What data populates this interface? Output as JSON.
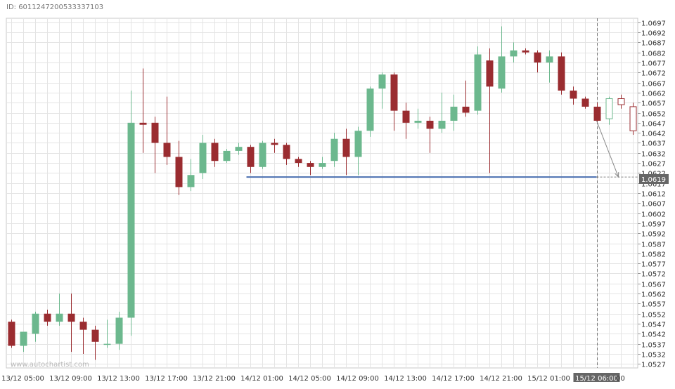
{
  "header": {
    "id_text": "ID: 6011247200533337103"
  },
  "watermark": "www.autochartist.com",
  "colors": {
    "up": "#6cb88e",
    "down": "#9a2c30",
    "grid": "#e4e4e4",
    "support": "#4a6fb0",
    "axis_text": "#333333"
  },
  "chart_data": {
    "type": "candlestick",
    "ylim": [
      1.0525,
      1.0699
    ],
    "y_tick_start": 1.0527,
    "y_tick_step": 0.0005,
    "y_tick_count": 35,
    "x_labels": [
      {
        "index": 1,
        "text": "13/12 05:00"
      },
      {
        "index": 5,
        "text": "13/12 09:00"
      },
      {
        "index": 9,
        "text": "13/12 13:00"
      },
      {
        "index": 13,
        "text": "13/12 17:00"
      },
      {
        "index": 17,
        "text": "13/12 21:00"
      },
      {
        "index": 21,
        "text": "14/12 01:00"
      },
      {
        "index": 25,
        "text": "14/12 05:00"
      },
      {
        "index": 29,
        "text": "14/12 09:00"
      },
      {
        "index": 33,
        "text": "14/12 13:00"
      },
      {
        "index": 37,
        "text": "14/12 17:00"
      },
      {
        "index": 41,
        "text": "14/12 21:00"
      },
      {
        "index": 45,
        "text": "15/12 01:00"
      },
      {
        "index": 49,
        "text": "15/12 06:00",
        "highlight": true
      },
      {
        "index": 51,
        "text": "00"
      }
    ],
    "candles": [
      {
        "o": 1.0548,
        "h": 1.0549,
        "l": 1.0535,
        "c": 1.0536
      },
      {
        "o": 1.0536,
        "h": 1.0543,
        "l": 1.0533,
        "c": 1.0543
      },
      {
        "o": 1.0542,
        "h": 1.0553,
        "l": 1.0538,
        "c": 1.0552
      },
      {
        "o": 1.0552,
        "h": 1.0554,
        "l": 1.0546,
        "c": 1.0548
      },
      {
        "o": 1.0548,
        "h": 1.0562,
        "l": 1.0546,
        "c": 1.0552
      },
      {
        "o": 1.0552,
        "h": 1.0562,
        "l": 1.0533,
        "c": 1.0548
      },
      {
        "o": 1.0548,
        "h": 1.055,
        "l": 1.0532,
        "c": 1.0544
      },
      {
        "o": 1.0544,
        "h": 1.0546,
        "l": 1.0529,
        "c": 1.0538
      },
      {
        "o": 1.0537,
        "h": 1.0549,
        "l": 1.0535,
        "c": 1.0537
      },
      {
        "o": 1.0537,
        "h": 1.0553,
        "l": 1.0534,
        "c": 1.055
      },
      {
        "o": 1.055,
        "h": 1.0663,
        "l": 1.0541,
        "c": 1.0647
      },
      {
        "o": 1.0647,
        "h": 1.0674,
        "l": 1.0632,
        "c": 1.0646
      },
      {
        "o": 1.0647,
        "h": 1.065,
        "l": 1.0622,
        "c": 1.0637
      },
      {
        "o": 1.0637,
        "h": 1.066,
        "l": 1.0626,
        "c": 1.063
      },
      {
        "o": 1.063,
        "h": 1.0638,
        "l": 1.0611,
        "c": 1.0615
      },
      {
        "o": 1.0615,
        "h": 1.0629,
        "l": 1.0613,
        "c": 1.0621
      },
      {
        "o": 1.0622,
        "h": 1.0641,
        "l": 1.0619,
        "c": 1.0637
      },
      {
        "o": 1.0637,
        "h": 1.0639,
        "l": 1.0625,
        "c": 1.0628
      },
      {
        "o": 1.0628,
        "h": 1.0634,
        "l": 1.0627,
        "c": 1.0633
      },
      {
        "o": 1.0633,
        "h": 1.0637,
        "l": 1.0631,
        "c": 1.0635
      },
      {
        "o": 1.0635,
        "h": 1.0636,
        "l": 1.0622,
        "c": 1.0625
      },
      {
        "o": 1.0625,
        "h": 1.0638,
        "l": 1.0624,
        "c": 1.0637
      },
      {
        "o": 1.0637,
        "h": 1.0639,
        "l": 1.0632,
        "c": 1.0636
      },
      {
        "o": 1.0636,
        "h": 1.0637,
        "l": 1.0626,
        "c": 1.0629
      },
      {
        "o": 1.0629,
        "h": 1.063,
        "l": 1.0625,
        "c": 1.0627
      },
      {
        "o": 1.0627,
        "h": 1.0628,
        "l": 1.0621,
        "c": 1.0625
      },
      {
        "o": 1.0625,
        "h": 1.063,
        "l": 1.0624,
        "c": 1.0627
      },
      {
        "o": 1.0628,
        "h": 1.0642,
        "l": 1.0625,
        "c": 1.0639
      },
      {
        "o": 1.0639,
        "h": 1.0644,
        "l": 1.0621,
        "c": 1.063
      },
      {
        "o": 1.063,
        "h": 1.0645,
        "l": 1.0621,
        "c": 1.0643
      },
      {
        "o": 1.0643,
        "h": 1.0665,
        "l": 1.064,
        "c": 1.0664
      },
      {
        "o": 1.0664,
        "h": 1.0672,
        "l": 1.0654,
        "c": 1.0671
      },
      {
        "o": 1.0671,
        "h": 1.0672,
        "l": 1.0643,
        "c": 1.0653
      },
      {
        "o": 1.0653,
        "h": 1.0657,
        "l": 1.0639,
        "c": 1.0647
      },
      {
        "o": 1.0647,
        "h": 1.0654,
        "l": 1.0644,
        "c": 1.0648
      },
      {
        "o": 1.0648,
        "h": 1.065,
        "l": 1.0632,
        "c": 1.0644
      },
      {
        "o": 1.0644,
        "h": 1.0662,
        "l": 1.0642,
        "c": 1.0648
      },
      {
        "o": 1.0648,
        "h": 1.0661,
        "l": 1.0643,
        "c": 1.0655
      },
      {
        "o": 1.0655,
        "h": 1.0668,
        "l": 1.065,
        "c": 1.0652
      },
      {
        "o": 1.0653,
        "h": 1.0685,
        "l": 1.0651,
        "c": 1.0681
      },
      {
        "o": 1.0678,
        "h": 1.0684,
        "l": 1.0622,
        "c": 1.0665
      },
      {
        "o": 1.0664,
        "h": 1.0695,
        "l": 1.0662,
        "c": 1.068
      },
      {
        "o": 1.068,
        "h": 1.0687,
        "l": 1.0677,
        "c": 1.0683
      },
      {
        "o": 1.0683,
        "h": 1.0684,
        "l": 1.0681,
        "c": 1.0682
      },
      {
        "o": 1.0682,
        "h": 1.0683,
        "l": 1.0672,
        "c": 1.0677
      },
      {
        "o": 1.0677,
        "h": 1.0683,
        "l": 1.0667,
        "c": 1.068
      },
      {
        "o": 1.068,
        "h": 1.0682,
        "l": 1.0661,
        "c": 1.0663
      },
      {
        "o": 1.0663,
        "h": 1.0665,
        "l": 1.0656,
        "c": 1.0659
      },
      {
        "o": 1.0659,
        "h": 1.066,
        "l": 1.0654,
        "c": 1.0655
      },
      {
        "o": 1.0655,
        "h": 1.0657,
        "l": 1.0647,
        "c": 1.0648
      },
      {
        "o": 1.0649,
        "h": 1.066,
        "l": 1.0646,
        "c": 1.0659,
        "hollow": true
      },
      {
        "o": 1.0659,
        "h": 1.0661,
        "l": 1.0654,
        "c": 1.0656,
        "hollow": true
      },
      {
        "o": 1.0655,
        "h": 1.0657,
        "l": 1.0641,
        "c": 1.0643,
        "hollow": true
      }
    ],
    "support_level": {
      "value": 1.062,
      "from_index": 20,
      "to_index": 49
    },
    "forecast_arrow": {
      "from_index": 49,
      "from_value": 1.0648,
      "to_index": 51,
      "to_value": 1.062
    },
    "current_price": {
      "value": 1.0619,
      "label": "1.0619"
    },
    "vline_index": 49
  }
}
